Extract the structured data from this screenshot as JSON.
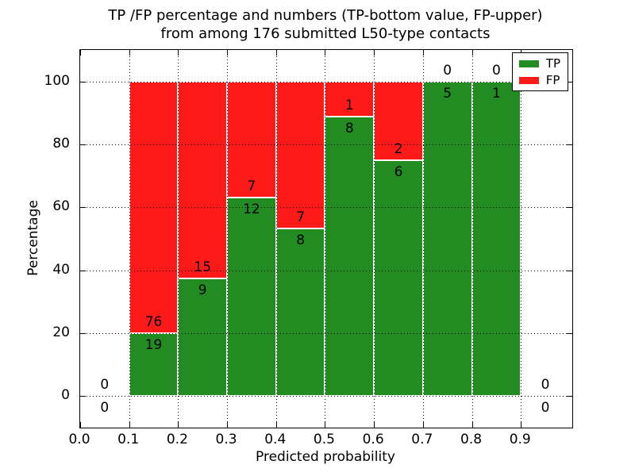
{
  "title": {
    "line1": "TP /FP percentage and numbers (TP-bottom value, FP-upper)",
    "line2": "from among 176 submitted L50-type contacts"
  },
  "colors": {
    "background": "#ffffff",
    "text": "#000000",
    "tp_green": "#228B22",
    "fp_red": "#FF1A1A"
  },
  "chart_data": {
    "type": "bar",
    "stacked": true,
    "normalized": "percent",
    "title": "TP /FP percentage and numbers (TP-bottom value, FP-upper) from among 176 submitted L50-type contacts",
    "xlabel": "Predicted probability",
    "ylabel": "Percentage",
    "total_contacts": 176,
    "grid": true,
    "legend_position": "upper right",
    "xlim": [
      0.0,
      1.005
    ],
    "ylim": [
      -10,
      110
    ],
    "yticks": [
      0,
      20,
      40,
      60,
      80,
      100
    ],
    "xtick_labels": [
      "0.0",
      "0.1",
      "0.2",
      "0.3",
      "0.4",
      "0.5",
      "0.6",
      "0.7",
      "0.8",
      "0.9"
    ],
    "series": [
      {
        "name": "TP",
        "color": "#228B22"
      },
      {
        "name": "FP",
        "color": "#FF1A1A"
      }
    ],
    "bins": [
      {
        "x0": 0.0,
        "x1": 0.1,
        "tp": 0,
        "fp": 0,
        "tp_percent": 0.0,
        "fp_percent": 0.0
      },
      {
        "x0": 0.1,
        "x1": 0.2,
        "tp": 19,
        "fp": 76,
        "tp_percent": 20.0,
        "fp_percent": 80.0
      },
      {
        "x0": 0.2,
        "x1": 0.3,
        "tp": 9,
        "fp": 15,
        "tp_percent": 37.5,
        "fp_percent": 62.5
      },
      {
        "x0": 0.3,
        "x1": 0.4,
        "tp": 12,
        "fp": 7,
        "tp_percent": 63.2,
        "fp_percent": 36.8
      },
      {
        "x0": 0.4,
        "x1": 0.5,
        "tp": 8,
        "fp": 7,
        "tp_percent": 53.3,
        "fp_percent": 46.7
      },
      {
        "x0": 0.5,
        "x1": 0.6,
        "tp": 8,
        "fp": 1,
        "tp_percent": 88.9,
        "fp_percent": 11.1
      },
      {
        "x0": 0.6,
        "x1": 0.7,
        "tp": 6,
        "fp": 2,
        "tp_percent": 75.0,
        "fp_percent": 25.0
      },
      {
        "x0": 0.7,
        "x1": 0.8,
        "tp": 5,
        "fp": 0,
        "tp_percent": 100.0,
        "fp_percent": 0.0
      },
      {
        "x0": 0.8,
        "x1": 0.9,
        "tp": 1,
        "fp": 0,
        "tp_percent": 100.0,
        "fp_percent": 0.0
      },
      {
        "x0": 0.9,
        "x1": 1.0,
        "tp": 0,
        "fp": 0,
        "tp_percent": 0.0,
        "fp_percent": 0.0
      }
    ]
  }
}
